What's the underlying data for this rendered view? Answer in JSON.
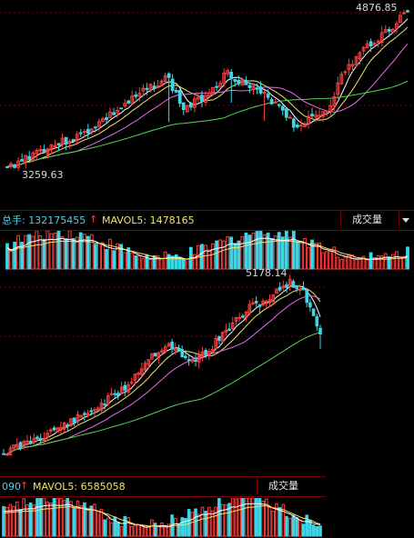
{
  "top_chart": {
    "high_label": "4876.85",
    "low_label": "3259.63",
    "volume_bar": {
      "total_label": "总手: 132175455",
      "mavol_label": "MAVOL5: 1478165",
      "tab_label": "成交量"
    }
  },
  "bottom_chart": {
    "high_label": "5178.14",
    "volume_bar": {
      "total_label": "090",
      "mavol_label": "MAVOL5: 6585058",
      "tab_label": "成交量"
    }
  },
  "colors": {
    "up": "#ff3c3c",
    "down": "#3dd6e6",
    "ma5": "#ffffff",
    "ma10": "#f2e36b",
    "ma20": "#e86ce8",
    "ma60": "#4fd84f",
    "grid": "#7a0000",
    "value_text": "#4fd1e8",
    "mavol_text": "#f2e36b"
  }
}
